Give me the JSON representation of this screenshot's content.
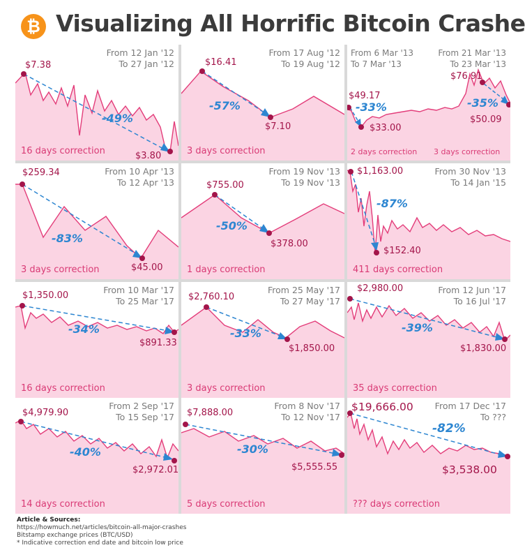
{
  "header": {
    "logo_glyph": "₿",
    "title": "Visualizing All Horrific Bitcoin Crashes"
  },
  "colors": {
    "line": "#e33d7a",
    "fill": "#fbd4e3",
    "marker": "#a3154a",
    "arrow": "#2d86d1",
    "label": "#d93a75"
  },
  "panels": [
    {
      "from": "From 12 Jan '12",
      "to": "To 27 Jan '12",
      "pct": "-49%",
      "high": "$7.38",
      "low": "$3.80",
      "correction": "16 days correction"
    },
    {
      "from": "From 17 Aug '12",
      "to": "To 19 Aug '12",
      "pct": "-57%",
      "high": "$16.41",
      "low": "$7.10",
      "correction": "3 days correction"
    },
    {
      "from": "From 6 Mar '13",
      "to": "To 7 Mar '13",
      "from2": "From 21 Mar '13",
      "to2": "To 23 Mar '13",
      "pct": "-33%",
      "pct2": "-35%",
      "high": "$49.17",
      "low": "$33.00",
      "high2": "$76.91",
      "low2": "$50.09",
      "correction": "2 days correction",
      "correction2": "3 days correction"
    },
    {
      "from": "From 10 Apr '13",
      "to": "To 12 Apr '13",
      "pct": "-83%",
      "high": "$259.34",
      "low": "$45.00",
      "correction": "3 days correction"
    },
    {
      "from": "From 19 Nov '13",
      "to": "To 19 Nov '13",
      "pct": "-50%",
      "high": "$755.00",
      "low": "$378.00",
      "correction": "1 days correction"
    },
    {
      "from": "From 30 Nov '13",
      "to": "To 14 Jan '15",
      "pct": "-87%",
      "high": "$1,163.00",
      "low": "$152.40",
      "correction": "411 days correction"
    },
    {
      "from": "From 10 Mar '17",
      "to": "To 25 Mar '17",
      "pct": "-34%",
      "high": "$1,350.00",
      "low": "$891.33",
      "correction": "16 days correction"
    },
    {
      "from": "From 25 May '17",
      "to": "To 27 May '17",
      "pct": "-33%",
      "high": "$2,760.10",
      "low": "$1,850.00",
      "correction": "3 days correction"
    },
    {
      "from": "From 12 Jun '17",
      "to": "To 16 Jul '17",
      "pct": "-39%",
      "high": "$2,980.00",
      "low": "$1,830.00",
      "correction": "35 days correction"
    },
    {
      "from": "From 2 Sep '17",
      "to": "To 15 Sep '17",
      "pct": "-40%",
      "high": "$4,979.90",
      "low": "$2,972.01",
      "correction": "14 days correction"
    },
    {
      "from": "From 8 Nov '17",
      "to": "To 12 Nov '17",
      "pct": "-30%",
      "high": "$7,888.00",
      "low": "$5,555.55",
      "correction": "5 days correction"
    },
    {
      "from": "From 17 Dec '17",
      "to": "To ???",
      "pct": "-82%",
      "high": "$19,666.00",
      "low": "$3,538.00",
      "correction": "??? days correction"
    }
  ],
  "chart_data": [
    {
      "type": "area",
      "title": "From 12 Jan '12 To 27 Jan '12",
      "start": 7.38,
      "end": 3.8,
      "change": "-49%",
      "duration_days": 16
    },
    {
      "type": "area",
      "title": "From 17 Aug '12 To 19 Aug '12",
      "start": 16.41,
      "end": 7.1,
      "change": "-57%",
      "duration_days": 3
    },
    {
      "type": "area",
      "title": "From 6 Mar '13 To 7 Mar '13 / From 21 Mar '13 To 23 Mar '13",
      "series": [
        {
          "start": 49.17,
          "end": 33.0,
          "change": "-33%",
          "duration_days": 2
        },
        {
          "start": 76.91,
          "end": 50.09,
          "change": "-35%",
          "duration_days": 3
        }
      ]
    },
    {
      "type": "area",
      "title": "From 10 Apr '13 To 12 Apr '13",
      "start": 259.34,
      "end": 45.0,
      "change": "-83%",
      "duration_days": 3
    },
    {
      "type": "area",
      "title": "From 19 Nov '13 To 19 Nov '13",
      "start": 755.0,
      "end": 378.0,
      "change": "-50%",
      "duration_days": 1
    },
    {
      "type": "area",
      "title": "From 30 Nov '13 To 14 Jan '15",
      "start": 1163.0,
      "end": 152.4,
      "change": "-87%",
      "duration_days": 411
    },
    {
      "type": "area",
      "title": "From 10 Mar '17 To 25 Mar '17",
      "start": 1350.0,
      "end": 891.33,
      "change": "-34%",
      "duration_days": 16
    },
    {
      "type": "area",
      "title": "From 25 May '17 To 27 May '17",
      "start": 2760.1,
      "end": 1850.0,
      "change": "-33%",
      "duration_days": 3
    },
    {
      "type": "area",
      "title": "From 12 Jun '17 To 16 Jul '17",
      "start": 2980.0,
      "end": 1830.0,
      "change": "-39%",
      "duration_days": 35
    },
    {
      "type": "area",
      "title": "From 2 Sep '17 To 15 Sep '17",
      "start": 4979.9,
      "end": 2972.01,
      "change": "-40%",
      "duration_days": 14
    },
    {
      "type": "area",
      "title": "From 8 Nov '17 To 12 Nov '17",
      "start": 7888.0,
      "end": 5555.55,
      "change": "-30%",
      "duration_days": 5
    },
    {
      "type": "area",
      "title": "From 17 Dec '17 To ???",
      "start": 19666.0,
      "end": 3538.0,
      "change": "-82%",
      "duration_days": "???"
    }
  ],
  "footer": {
    "heading": "Article & Sources:",
    "url": "https://howmuch.net/articles/bitcoin-all-major-crashes",
    "source": "Bitstamp exchange prices (BTC/USD)",
    "note": "* Indicative correction end date and bitcoin low price"
  }
}
